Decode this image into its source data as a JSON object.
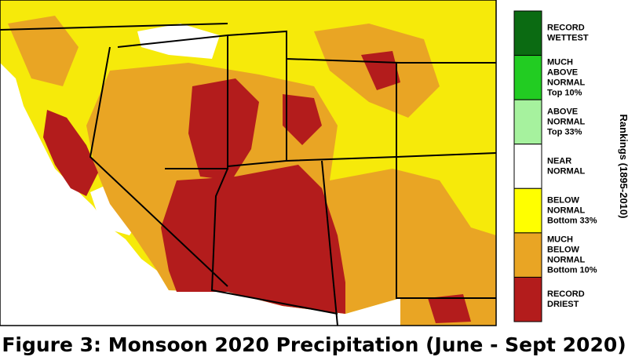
{
  "caption": "Figure 3: Monsoon 2020 Precipitation (June - Sept 2020)",
  "legend": {
    "title": "Rankings (1895-2010)",
    "items": [
      {
        "lines": [
          "RECORD",
          "WETTEST"
        ],
        "color": "#0b6b12"
      },
      {
        "lines": [
          "MUCH",
          "ABOVE",
          "NORMAL",
          "Top 10%"
        ],
        "color": "#22cc22"
      },
      {
        "lines": [
          "ABOVE",
          "NORMAL",
          "Top 33%"
        ],
        "color": "#a6f29e"
      },
      {
        "lines": [
          "NEAR",
          "NORMAL"
        ],
        "color": "#ffffff"
      },
      {
        "lines": [
          "BELOW",
          "NORMAL",
          "Bottom 33%"
        ],
        "color": "#ffff00"
      },
      {
        "lines": [
          "MUCH",
          "BELOW",
          "NORMAL",
          "Bottom 10%"
        ],
        "color": "#e9a524"
      },
      {
        "lines": [
          "RECORD",
          "DRIEST"
        ],
        "color": "#b31c1c"
      }
    ]
  }
}
